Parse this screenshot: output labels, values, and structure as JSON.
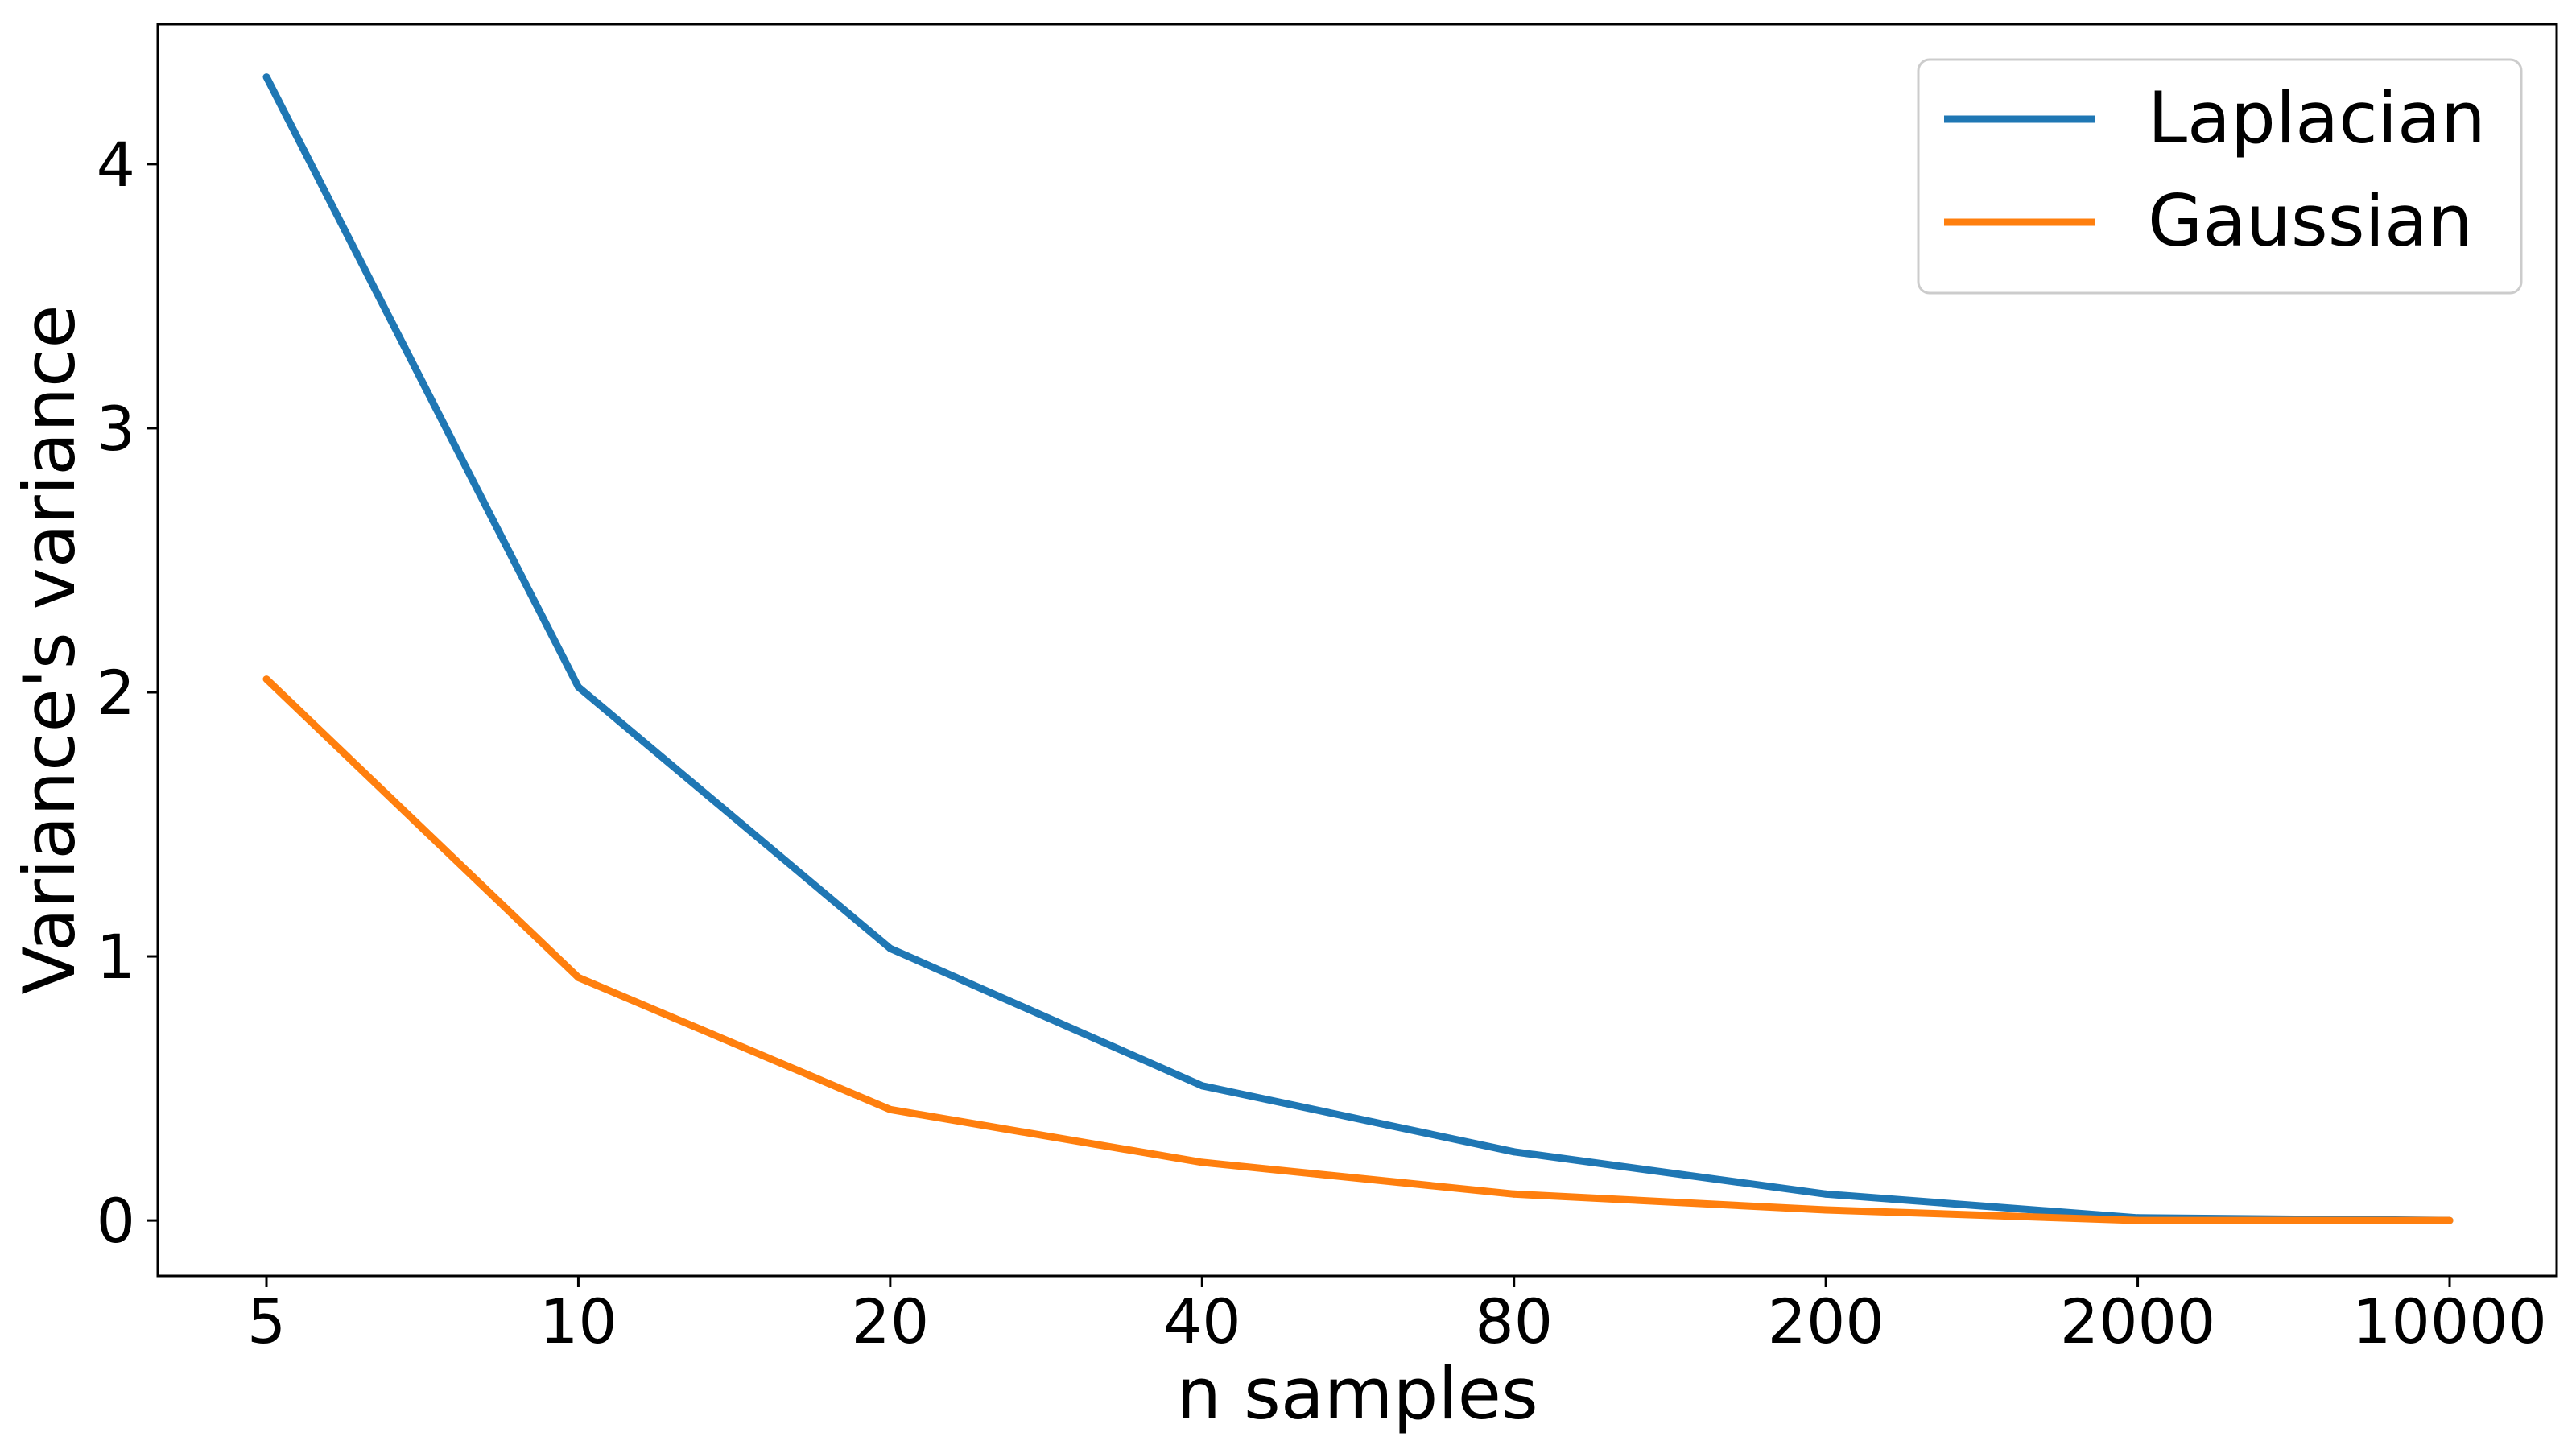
{
  "chart_data": {
    "type": "line",
    "categories": [
      "5",
      "10",
      "20",
      "40",
      "80",
      "200",
      "2000",
      "10000"
    ],
    "series": [
      {
        "name": "Laplacian",
        "color": "#1f77b4",
        "values": [
          4.33,
          2.02,
          1.03,
          0.51,
          0.26,
          0.1,
          0.01,
          0.0
        ]
      },
      {
        "name": "Gaussian",
        "color": "#ff7f0e",
        "values": [
          2.05,
          0.92,
          0.42,
          0.22,
          0.1,
          0.04,
          0.0,
          0.0
        ]
      }
    ],
    "xlabel": "n samples",
    "ylabel": "Variance's variance",
    "yticks": [
      "0",
      "1",
      "2",
      "3",
      "4"
    ],
    "ylim": [
      -0.21,
      4.53
    ],
    "grid": false,
    "legend_position": "top-right"
  }
}
